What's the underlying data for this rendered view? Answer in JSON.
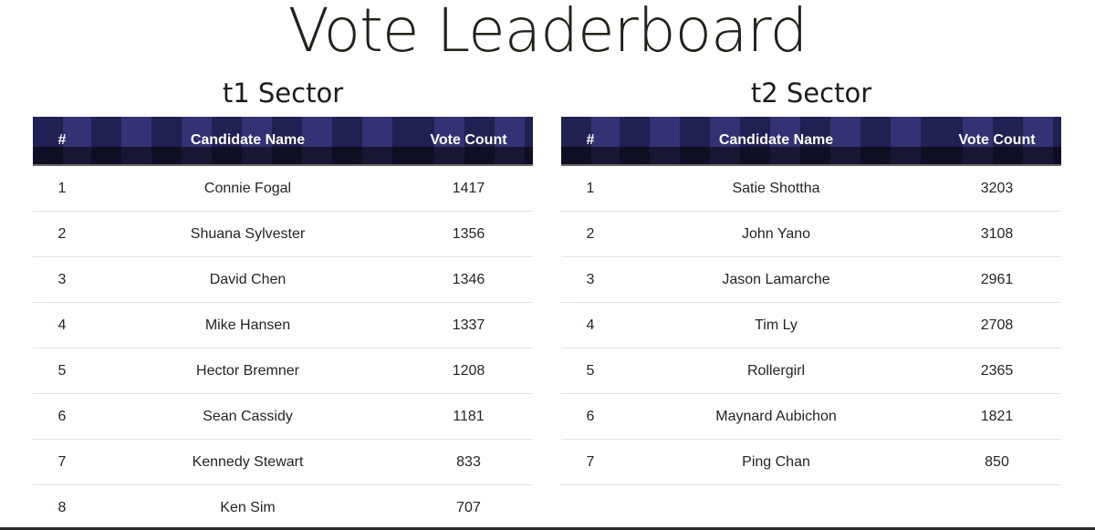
{
  "page": {
    "title": "Vote Leaderboard"
  },
  "columns": {
    "rank": "#",
    "name": "Candidate Name",
    "votes": "Vote Count"
  },
  "sectors": [
    {
      "title": "t1 Sector",
      "rows": [
        {
          "rank": "1",
          "name": "Connie Fogal",
          "votes": "1417"
        },
        {
          "rank": "2",
          "name": "Shuana Sylvester",
          "votes": "1356"
        },
        {
          "rank": "3",
          "name": "David Chen",
          "votes": "1346"
        },
        {
          "rank": "4",
          "name": "Mike Hansen",
          "votes": "1337"
        },
        {
          "rank": "5",
          "name": "Hector Bremner",
          "votes": "1208"
        },
        {
          "rank": "6",
          "name": "Sean Cassidy",
          "votes": "1181"
        },
        {
          "rank": "7",
          "name": "Kennedy Stewart",
          "votes": "833"
        },
        {
          "rank": "8",
          "name": "Ken Sim",
          "votes": "707"
        }
      ]
    },
    {
      "title": "t2 Sector",
      "rows": [
        {
          "rank": "1",
          "name": "Satie Shottha",
          "votes": "3203"
        },
        {
          "rank": "2",
          "name": "John Yano",
          "votes": "3108"
        },
        {
          "rank": "3",
          "name": "Jason Lamarche",
          "votes": "2961"
        },
        {
          "rank": "4",
          "name": "Tim Ly",
          "votes": "2708"
        },
        {
          "rank": "5",
          "name": "Rollergirl",
          "votes": "2365"
        },
        {
          "rank": "6",
          "name": "Maynard Aubichon",
          "votes": "1821"
        },
        {
          "rank": "7",
          "name": "Ping Chan",
          "votes": "850"
        }
      ]
    }
  ],
  "colors": {
    "header_bg": "#26265a",
    "header_text": "#ffffff",
    "row_divider": "#dde3ea"
  }
}
